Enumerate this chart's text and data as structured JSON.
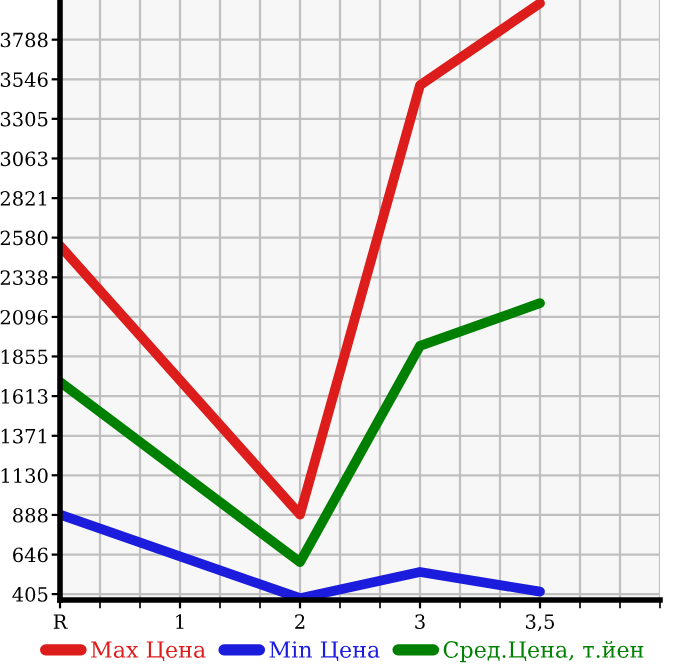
{
  "chart_data": {
    "type": "line",
    "categories": [
      "R",
      "1",
      "2",
      "3",
      "3,5"
    ],
    "series": [
      {
        "name": "Max Цена",
        "color": "#dd1c1c",
        "values": [
          2530,
          null,
          890,
          3510,
          4010
        ]
      },
      {
        "name": "Min Цена",
        "color": "#1c1cdd",
        "values": [
          890,
          null,
          380,
          540,
          420
        ]
      },
      {
        "name": "Сред.Цена, т.йен",
        "color": "#008000",
        "values": [
          1700,
          null,
          600,
          1920,
          2180
        ]
      }
    ],
    "ylim": [
      369,
      4030
    ],
    "yticks": [
      405,
      646,
      888,
      1130,
      1371,
      1613,
      1855,
      2096,
      2338,
      2580,
      2821,
      3063,
      3305,
      3546,
      3788
    ],
    "grid": true,
    "legend": "bottom",
    "marker": "none",
    "line_style": "solid"
  }
}
